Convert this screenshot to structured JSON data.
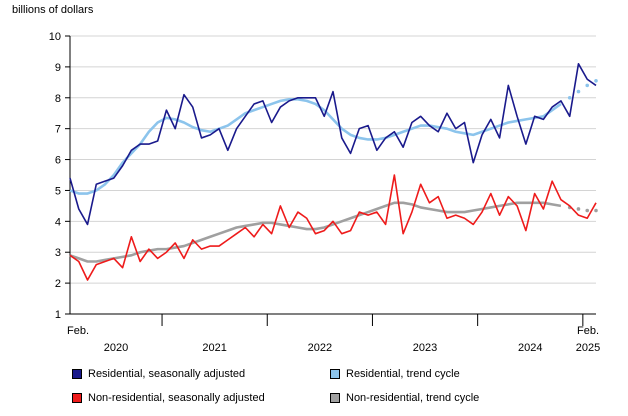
{
  "chart_data": {
    "type": "line",
    "ylabel": "billions of dollars",
    "ylim": [
      1,
      10
    ],
    "yticks": [
      1,
      2,
      3,
      4,
      5,
      6,
      7,
      8,
      9,
      10
    ],
    "x_start_label": "Feb.",
    "x_end_label": "Feb.",
    "year_labels": [
      "2020",
      "2021",
      "2022",
      "2023",
      "2024",
      "2025"
    ],
    "x": [
      "2020-02",
      "2020-03",
      "2020-04",
      "2020-05",
      "2020-06",
      "2020-07",
      "2020-08",
      "2020-09",
      "2020-10",
      "2020-11",
      "2020-12",
      "2021-01",
      "2021-02",
      "2021-03",
      "2021-04",
      "2021-05",
      "2021-06",
      "2021-07",
      "2021-08",
      "2021-09",
      "2021-10",
      "2021-11",
      "2021-12",
      "2022-01",
      "2022-02",
      "2022-03",
      "2022-04",
      "2022-05",
      "2022-06",
      "2022-07",
      "2022-08",
      "2022-09",
      "2022-10",
      "2022-11",
      "2022-12",
      "2023-01",
      "2023-02",
      "2023-03",
      "2023-04",
      "2023-05",
      "2023-06",
      "2023-07",
      "2023-08",
      "2023-09",
      "2023-10",
      "2023-11",
      "2023-12",
      "2024-01",
      "2024-02",
      "2024-03",
      "2024-04",
      "2024-05",
      "2024-06",
      "2024-07",
      "2024-08",
      "2024-09",
      "2024-10",
      "2024-11",
      "2024-12",
      "2025-01",
      "2025-02"
    ],
    "grid": true,
    "legend_position": "bottom",
    "series": [
      {
        "name": "Residential, seasonally adjusted",
        "color": "#1a1a8c",
        "style": "solid",
        "values": [
          5.4,
          4.4,
          3.9,
          5.2,
          5.3,
          5.4,
          5.8,
          6.3,
          6.5,
          6.5,
          6.6,
          7.6,
          7.0,
          8.1,
          7.7,
          6.7,
          6.8,
          7.0,
          6.3,
          7.0,
          7.4,
          7.8,
          7.9,
          7.2,
          7.7,
          7.9,
          8.0,
          8.0,
          8.0,
          7.4,
          8.2,
          6.7,
          6.2,
          7.0,
          7.1,
          6.3,
          6.7,
          6.9,
          6.4,
          7.2,
          7.4,
          7.1,
          6.9,
          7.5,
          7.0,
          7.2,
          5.9,
          6.8,
          7.3,
          6.7,
          8.4,
          7.4,
          6.5,
          7.4,
          7.3,
          7.7,
          7.9,
          7.4,
          9.1,
          8.6,
          8.4
        ]
      },
      {
        "name": "Residential, trend cycle",
        "color": "#8cc4ec",
        "style": "solid",
        "projected_points": 4,
        "values": [
          5.0,
          4.9,
          4.9,
          5.0,
          5.2,
          5.5,
          5.9,
          6.2,
          6.5,
          6.9,
          7.2,
          7.35,
          7.3,
          7.2,
          7.05,
          6.95,
          6.9,
          7.0,
          7.1,
          7.3,
          7.5,
          7.6,
          7.7,
          7.8,
          7.9,
          7.95,
          7.95,
          7.9,
          7.8,
          7.6,
          7.3,
          7.0,
          6.8,
          6.7,
          6.65,
          6.65,
          6.7,
          6.8,
          6.9,
          7.0,
          7.1,
          7.1,
          7.05,
          7.0,
          6.9,
          6.85,
          6.8,
          6.9,
          7.0,
          7.1,
          7.2,
          7.25,
          7.3,
          7.35,
          7.4,
          7.6,
          7.8,
          8.0,
          8.2,
          8.4,
          8.55
        ]
      },
      {
        "name": "Non-residential, seasonally adjusted",
        "color": "#ee1b1b",
        "style": "solid",
        "values": [
          2.9,
          2.7,
          2.1,
          2.6,
          2.7,
          2.8,
          2.5,
          3.5,
          2.7,
          3.1,
          2.8,
          3.0,
          3.3,
          2.8,
          3.4,
          3.1,
          3.2,
          3.2,
          3.4,
          3.6,
          3.8,
          3.5,
          3.9,
          3.6,
          4.5,
          3.8,
          4.3,
          4.1,
          3.6,
          3.7,
          4.0,
          3.6,
          3.7,
          4.3,
          4.2,
          4.3,
          3.9,
          5.5,
          3.6,
          4.3,
          5.2,
          4.6,
          4.8,
          4.1,
          4.2,
          4.1,
          3.9,
          4.3,
          4.9,
          4.2,
          4.8,
          4.5,
          3.7,
          4.9,
          4.4,
          5.3,
          4.7,
          4.5,
          4.2,
          4.1,
          4.6
        ]
      },
      {
        "name": "Non-residential, trend cycle",
        "color": "#a0a0a0",
        "style": "solid",
        "projected_points": 4,
        "values": [
          2.9,
          2.8,
          2.7,
          2.7,
          2.75,
          2.8,
          2.85,
          2.9,
          3.0,
          3.05,
          3.1,
          3.1,
          3.15,
          3.2,
          3.3,
          3.4,
          3.5,
          3.6,
          3.7,
          3.8,
          3.85,
          3.9,
          3.95,
          3.95,
          3.9,
          3.85,
          3.8,
          3.75,
          3.75,
          3.8,
          3.9,
          4.0,
          4.1,
          4.2,
          4.3,
          4.4,
          4.5,
          4.6,
          4.6,
          4.55,
          4.45,
          4.4,
          4.35,
          4.3,
          4.3,
          4.3,
          4.35,
          4.4,
          4.45,
          4.5,
          4.55,
          4.6,
          4.6,
          4.6,
          4.6,
          4.55,
          4.5,
          4.45,
          4.4,
          4.35,
          4.35
        ]
      }
    ]
  }
}
